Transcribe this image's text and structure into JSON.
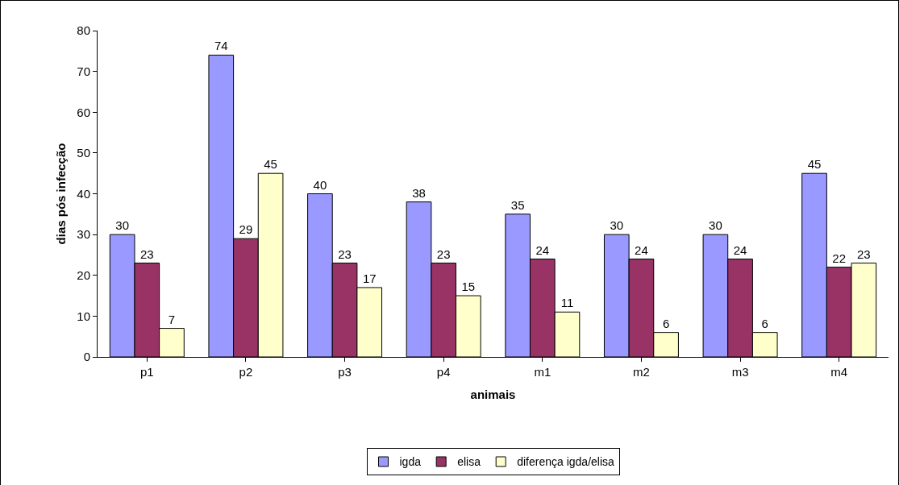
{
  "chart_data": {
    "type": "bar",
    "xlabel": "animais",
    "ylabel": "dias pós infecção",
    "categories": [
      "p1",
      "p2",
      "p3",
      "p4",
      "m1",
      "m2",
      "m3",
      "m4"
    ],
    "series": [
      {
        "name": "igda",
        "color": "#9999ff",
        "values": [
          30,
          74,
          40,
          38,
          35,
          30,
          30,
          45
        ]
      },
      {
        "name": "elisa",
        "color": "#993366",
        "values": [
          23,
          29,
          23,
          23,
          24,
          24,
          24,
          22
        ]
      },
      {
        "name": "diferença igda/elisa",
        "color": "#ffffcc",
        "values": [
          7,
          45,
          17,
          15,
          11,
          6,
          6,
          23
        ]
      }
    ],
    "ylim": [
      0,
      80
    ],
    "yticks": [
      0,
      10,
      20,
      30,
      40,
      50,
      60,
      70,
      80
    ],
    "grid": false,
    "legend": "bottom",
    "data_labels": true
  }
}
